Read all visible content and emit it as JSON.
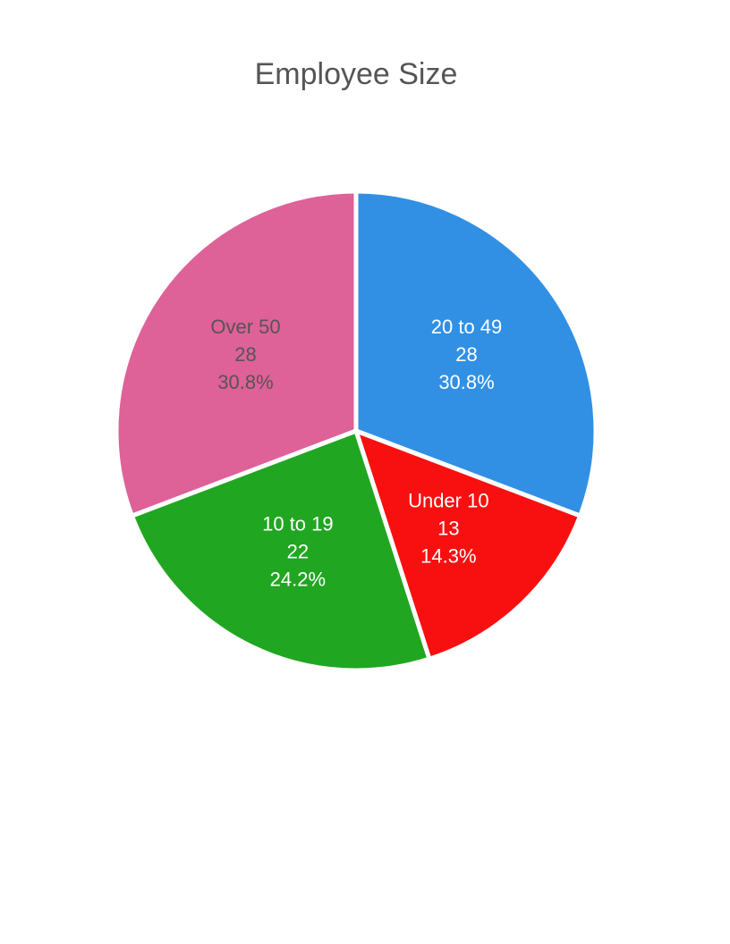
{
  "chart_data": {
    "type": "pie",
    "title": "Employee Size",
    "slices": [
      {
        "label": "20 to 49",
        "value": 28,
        "percent": "30.8%",
        "color": "#3190e4",
        "text_color": "#ffffff"
      },
      {
        "label": "Under 10",
        "value": 13,
        "percent": "14.3%",
        "color": "#f81010",
        "text_color": "#ffffff"
      },
      {
        "label": "10 to 19",
        "value": 22,
        "percent": "24.2%",
        "color": "#21a621",
        "text_color": "#ffffff"
      },
      {
        "label": "Over 50",
        "value": 28,
        "percent": "30.8%",
        "color": "#de6198",
        "text_color": "#555555"
      }
    ],
    "start_angle": "top",
    "direction": "clockwise",
    "legend": "none"
  }
}
